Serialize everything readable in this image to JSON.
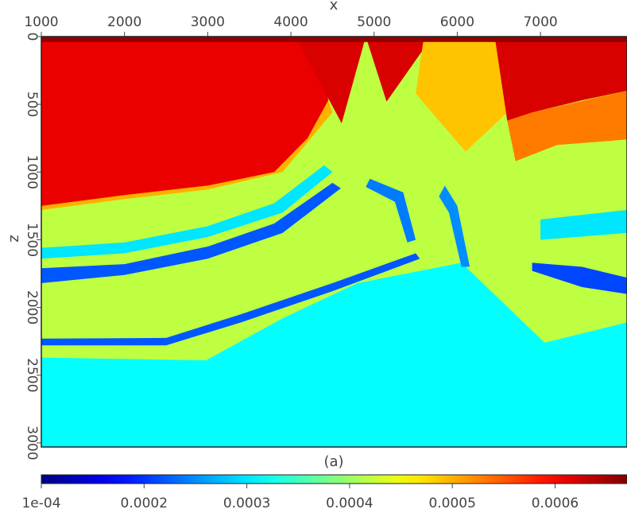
{
  "chart_data": {
    "type": "heatmap",
    "title": "(a)",
    "xlabel": "x",
    "ylabel": "z",
    "xlim": [
      1000,
      8040
    ],
    "ylim": [
      0,
      3030
    ],
    "y_inverted": true,
    "x_ticks": [
      "1000",
      "2000",
      "3000",
      "4000",
      "5000",
      "6000",
      "7000"
    ],
    "x_tick_values": [
      1000,
      2000,
      3000,
      4000,
      5000,
      6000,
      7000
    ],
    "y_ticks": [
      "0",
      "500",
      "1000",
      "1500",
      "2000",
      "2500",
      "3000"
    ],
    "y_tick_values": [
      0,
      500,
      1000,
      1500,
      2000,
      2500,
      3000
    ],
    "colormap": "jet",
    "colorbar": {
      "range": [
        0.0001,
        0.00067
      ],
      "tick_labels": [
        "1e-04",
        "0.0002",
        "0.0003",
        "0.0004",
        "0.0005",
        "0.0006"
      ],
      "tick_values": [
        0.0001,
        0.0002,
        0.0003,
        0.0004,
        0.0005,
        0.0006
      ],
      "placement": "bottom"
    },
    "grid": false,
    "regions": [
      {
        "name": "background",
        "value": 0.00042,
        "polygon": [
          [
            1000,
            0
          ],
          [
            8040,
            0
          ],
          [
            8040,
            3030
          ],
          [
            1000,
            3030
          ]
        ]
      },
      {
        "name": "deep-layer",
        "value": 0.000315,
        "polygon": [
          [
            1000,
            2370
          ],
          [
            2980,
            2390
          ],
          [
            3900,
            2080
          ],
          [
            4800,
            1820
          ],
          [
            6050,
            1670
          ],
          [
            7050,
            2260
          ],
          [
            8040,
            2110
          ],
          [
            8040,
            3030
          ],
          [
            1000,
            3030
          ]
        ]
      },
      {
        "name": "upper-blue-layer",
        "value": 0.00022,
        "polygon": [
          [
            1000,
            1710
          ],
          [
            2000,
            1680
          ],
          [
            3000,
            1550
          ],
          [
            3800,
            1380
          ],
          [
            4500,
            1080
          ],
          [
            4600,
            1120
          ],
          [
            3900,
            1450
          ],
          [
            3000,
            1640
          ],
          [
            2000,
            1760
          ],
          [
            1000,
            1820
          ]
        ]
      },
      {
        "name": "upper-cyan-layer",
        "value": 0.0003,
        "polygon": [
          [
            1000,
            1560
          ],
          [
            2000,
            1520
          ],
          [
            3000,
            1400
          ],
          [
            3800,
            1230
          ],
          [
            4400,
            950
          ],
          [
            4500,
            1000
          ],
          [
            3900,
            1300
          ],
          [
            3000,
            1480
          ],
          [
            2000,
            1600
          ],
          [
            1000,
            1640
          ]
        ]
      },
      {
        "name": "lower-blue-layer",
        "value": 0.00022,
        "polygon": [
          [
            1000,
            2230
          ],
          [
            2500,
            2225
          ],
          [
            3400,
            2050
          ],
          [
            4500,
            1820
          ],
          [
            5500,
            1600
          ],
          [
            5550,
            1640
          ],
          [
            4500,
            1880
          ],
          [
            3400,
            2110
          ],
          [
            2500,
            2280
          ],
          [
            1000,
            2280
          ]
        ]
      },
      {
        "name": "mid-blue-stripe",
        "value": 0.00024,
        "polygon": [
          [
            4950,
            1050
          ],
          [
            5350,
            1150
          ],
          [
            5500,
            1500
          ],
          [
            5400,
            1520
          ],
          [
            5250,
            1220
          ],
          [
            4900,
            1110
          ]
        ]
      },
      {
        "name": "mid-blue-stripe-2",
        "value": 0.00025,
        "polygon": [
          [
            5850,
            1100
          ],
          [
            6000,
            1250
          ],
          [
            6150,
            1700
          ],
          [
            6050,
            1700
          ],
          [
            5900,
            1300
          ],
          [
            5780,
            1180
          ]
        ]
      },
      {
        "name": "right-blue-layer",
        "value": 0.00021,
        "polygon": [
          [
            6900,
            1670
          ],
          [
            7500,
            1700
          ],
          [
            8040,
            1780
          ],
          [
            8040,
            1900
          ],
          [
            7500,
            1850
          ],
          [
            6900,
            1730
          ]
        ]
      },
      {
        "name": "right-cyan-layer",
        "value": 0.0003,
        "polygon": [
          [
            7000,
            1350
          ],
          [
            8040,
            1280
          ],
          [
            8040,
            1450
          ],
          [
            7000,
            1500
          ]
        ]
      },
      {
        "name": "left-orange-band",
        "value": 0.0005,
        "polygon": [
          [
            1000,
            1150
          ],
          [
            2000,
            1080
          ],
          [
            3000,
            1000
          ],
          [
            3800,
            900
          ],
          [
            4450,
            470
          ],
          [
            4500,
            560
          ],
          [
            3900,
            1000
          ],
          [
            3000,
            1130
          ],
          [
            2000,
            1200
          ],
          [
            1000,
            1280
          ]
        ]
      },
      {
        "name": "left-red-block",
        "value": 0.00061,
        "polygon": [
          [
            1000,
            0
          ],
          [
            4300,
            0
          ],
          [
            4450,
            470
          ],
          [
            4200,
            750
          ],
          [
            3800,
            1000
          ],
          [
            3000,
            1100
          ],
          [
            2000,
            1170
          ],
          [
            1000,
            1250
          ]
        ]
      },
      {
        "name": "middle-red-block",
        "value": 0.00062,
        "polygon": [
          [
            4050,
            0
          ],
          [
            4900,
            0
          ],
          [
            4610,
            640
          ]
        ]
      },
      {
        "name": "middle-red-block-2",
        "value": 0.00062,
        "polygon": [
          [
            4900,
            0
          ],
          [
            5700,
            0
          ],
          [
            5150,
            480
          ]
        ]
      },
      {
        "name": "yellow-block",
        "value": 0.00049,
        "polygon": [
          [
            5600,
            0
          ],
          [
            6450,
            0
          ],
          [
            6600,
            560
          ],
          [
            6100,
            850
          ],
          [
            5500,
            420
          ]
        ]
      },
      {
        "name": "right-orange-band",
        "value": 0.00053,
        "polygon": [
          [
            6600,
            620
          ],
          [
            6900,
            560
          ],
          [
            8040,
            400
          ],
          [
            8040,
            760
          ],
          [
            7200,
            800
          ],
          [
            6700,
            920
          ]
        ]
      },
      {
        "name": "right-red-block",
        "value": 0.00062,
        "polygon": [
          [
            6450,
            0
          ],
          [
            8040,
            0
          ],
          [
            8040,
            400
          ],
          [
            7500,
            470
          ],
          [
            6900,
            560
          ],
          [
            6600,
            620
          ]
        ]
      },
      {
        "name": "top-dark-strip",
        "value": 0.00066,
        "polygon": [
          [
            1000,
            0
          ],
          [
            8040,
            0
          ],
          [
            8040,
            40
          ],
          [
            1000,
            40
          ]
        ]
      }
    ]
  }
}
